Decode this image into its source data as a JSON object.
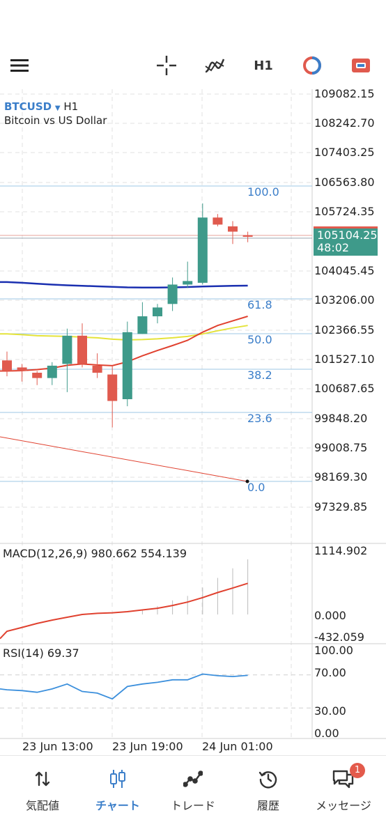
{
  "toolbar": {
    "menu_icon": "hamburger-menu-icon",
    "crosshair_icon": "crosshair-icon",
    "indicators_icon": "indicators-icon",
    "timeframe": "H1",
    "objects_icon": "objects-icon",
    "trade_icon": "trade-icon"
  },
  "symbol": {
    "name": "BTCUSD",
    "dropdown_icon": "caret-down-icon",
    "timeframe": "H1",
    "description": "Bitcoin vs US Dollar"
  },
  "price_axis": [
    "109082.15",
    "108242.70",
    "107403.25",
    "106563.80",
    "105724.35",
    "104045.45",
    "103206.00",
    "102366.55",
    "101527.10",
    "100687.65",
    "99848.20",
    "99008.75",
    "98169.30",
    "97329.85"
  ],
  "current_price": {
    "price": "105104.25",
    "countdown": "48:02"
  },
  "fibonacci": [
    "100.0",
    "61.8",
    "50.0",
    "38.2",
    "23.6",
    "0.0"
  ],
  "macd": {
    "label": "MACD(12,26,9) 980.662 554.139",
    "axis": [
      "1114.902",
      "0.000",
      "-432.059"
    ]
  },
  "rsi": {
    "label": "RSI(14) 69.37",
    "axis": [
      "100.00",
      "70.00",
      "30.00",
      "0.00"
    ]
  },
  "time_axis": [
    "23 Jun 13:00",
    "23 Jun 19:00",
    "24 Jun 01:00"
  ],
  "colors": {
    "bull": "#3e9a8a",
    "bear": "#e05a4e",
    "accent": "#3b7ec9",
    "ma_blue": "#1a2fb0",
    "ma_yellow": "#e4e33a",
    "ma_red": "#e0412f"
  },
  "candles": [
    {
      "o": 101600,
      "h": 101850,
      "l": 101150,
      "c": 101300
    },
    {
      "o": 101400,
      "h": 101500,
      "l": 101000,
      "c": 101300
    },
    {
      "o": 101250,
      "h": 101300,
      "l": 100900,
      "c": 101100
    },
    {
      "o": 101100,
      "h": 101550,
      "l": 100900,
      "c": 101450
    },
    {
      "o": 101500,
      "h": 102500,
      "l": 100700,
      "c": 102300
    },
    {
      "o": 102300,
      "h": 102650,
      "l": 101400,
      "c": 101500
    },
    {
      "o": 101450,
      "h": 101800,
      "l": 101100,
      "c": 101250
    },
    {
      "o": 101200,
      "h": 101450,
      "l": 99700,
      "c": 100450
    },
    {
      "o": 100500,
      "h": 102700,
      "l": 100300,
      "c": 102400
    },
    {
      "o": 102350,
      "h": 103250,
      "l": 102350,
      "c": 102850
    },
    {
      "o": 102850,
      "h": 103200,
      "l": 102650,
      "c": 103100
    },
    {
      "o": 103200,
      "h": 103950,
      "l": 103000,
      "c": 103750
    },
    {
      "o": 103750,
      "h": 104400,
      "l": 103650,
      "c": 103850
    },
    {
      "o": 103800,
      "h": 106050,
      "l": 103750,
      "c": 105650
    },
    {
      "o": 105650,
      "h": 105750,
      "l": 105400,
      "c": 105450
    },
    {
      "o": 105400,
      "h": 105550,
      "l": 104900,
      "c": 105250
    },
    {
      "o": 105150,
      "h": 105250,
      "l": 104950,
      "c": 105104.25
    }
  ],
  "ma_slow": [
    103820,
    103800,
    103775,
    103750,
    103730,
    103715,
    103700,
    103685,
    103670,
    103665,
    103665,
    103670,
    103680,
    103695,
    103705,
    103715,
    103720
  ],
  "ma_mid": [
    102350,
    102330,
    102300,
    102290,
    102280,
    102260,
    102240,
    102200,
    102180,
    102190,
    102210,
    102240,
    102280,
    102350,
    102440,
    102520,
    102590
  ],
  "ma_fast": [
    101300,
    101310,
    101340,
    101380,
    101460,
    101500,
    101470,
    101450,
    101560,
    101730,
    101880,
    102020,
    102170,
    102400,
    102590,
    102720,
    102850
  ],
  "trendline": [
    {
      "i": 0,
      "price": 99450
    },
    {
      "i": 16,
      "price": 98169.3
    }
  ],
  "macd_hist": [
    0,
    0,
    0,
    0,
    0,
    0,
    0,
    0,
    0,
    80,
    150,
    250,
    330,
    480,
    650,
    820,
    980
  ],
  "macd_signal": [
    -300,
    -230,
    -160,
    -100,
    -50,
    0,
    20,
    30,
    50,
    80,
    110,
    160,
    220,
    300,
    390,
    470,
    554
  ],
  "rsi_values": [
    52,
    51,
    49,
    53,
    59,
    50,
    48,
    41,
    56,
    59,
    61,
    64,
    64,
    71,
    69,
    68,
    69.37
  ],
  "nav": [
    {
      "label": "気配値",
      "icon": "quotes-arrows-icon"
    },
    {
      "label": "チャート",
      "icon": "chart-candles-icon"
    },
    {
      "label": "トレード",
      "icon": "trade-line-icon"
    },
    {
      "label": "履歴",
      "icon": "history-clock-icon"
    },
    {
      "label": "メッセージ",
      "icon": "messages-icon",
      "badge": "1"
    }
  ]
}
